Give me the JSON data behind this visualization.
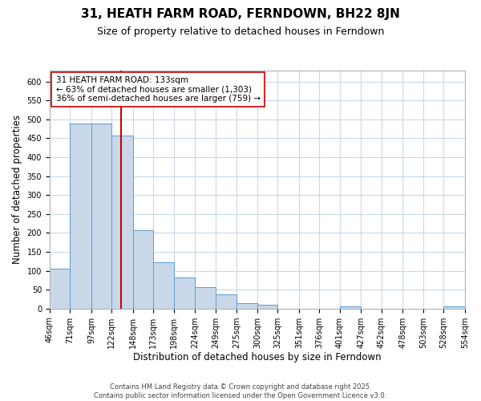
{
  "title": "31, HEATH FARM ROAD, FERNDOWN, BH22 8JN",
  "subtitle": "Size of property relative to detached houses in Ferndown",
  "xlabel": "Distribution of detached houses by size in Ferndown",
  "ylabel": "Number of detached properties",
  "bin_labels": [
    "46sqm",
    "71sqm",
    "97sqm",
    "122sqm",
    "148sqm",
    "173sqm",
    "198sqm",
    "224sqm",
    "249sqm",
    "275sqm",
    "300sqm",
    "325sqm",
    "351sqm",
    "376sqm",
    "401sqm",
    "427sqm",
    "452sqm",
    "478sqm",
    "503sqm",
    "528sqm",
    "554sqm"
  ],
  "bin_edges": [
    46,
    71,
    97,
    122,
    148,
    173,
    198,
    224,
    249,
    275,
    300,
    325,
    351,
    376,
    401,
    427,
    452,
    478,
    503,
    528,
    554
  ],
  "bar_heights": [
    105,
    490,
    490,
    458,
    207,
    122,
    83,
    57,
    37,
    15,
    11,
    0,
    0,
    0,
    5,
    0,
    0,
    0,
    0,
    0,
    5
  ],
  "bar_color": "#c8d8e8",
  "bar_edge_color": "#5b9bd5",
  "property_size": 133,
  "red_line_color": "#cc0000",
  "annotation_line1": "31 HEATH FARM ROAD: 133sqm",
  "annotation_line2": "← 63% of detached houses are smaller (1,303)",
  "annotation_line3": "36% of semi-detached houses are larger (759) →",
  "annotation_box_color": "#ffffff",
  "annotation_box_edge_color": "#cc0000",
  "ylim": [
    0,
    630
  ],
  "yticks": [
    0,
    50,
    100,
    150,
    200,
    250,
    300,
    350,
    400,
    450,
    500,
    550,
    600
  ],
  "background_color": "#ffffff",
  "grid_color": "#c8d8e8",
  "footer_line1": "Contains HM Land Registry data © Crown copyright and database right 2025.",
  "footer_line2": "Contains public sector information licensed under the Open Government Licence v3.0.",
  "title_fontsize": 11,
  "subtitle_fontsize": 9,
  "axis_label_fontsize": 8.5,
  "tick_fontsize": 7,
  "annotation_fontsize": 7.5,
  "footer_fontsize": 6
}
